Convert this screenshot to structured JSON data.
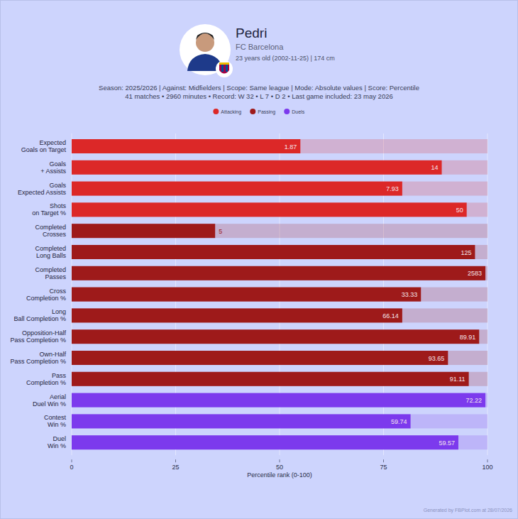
{
  "chart_data": {
    "type": "bar",
    "orientation": "horizontal",
    "title": "Pedri",
    "subtitle": "FC Barcelona",
    "player_info": "23 years old (2002-11-25)  |   174 cm",
    "annotations": [
      "Season: 2025/2026 | Against: Midfielders | Scope: Same league | Mode: Absolute values | Score: Percentile",
      "41 matches • 2960 minutes • Record: W 32 • L 7 • D 2 • Last game included: 23 may 2026"
    ],
    "footer": "Generated by FBPlot.com at 28/07/2026",
    "x_label": "Percentile rank (0-100)",
    "categories": [
      "Expected Goals on Target",
      "Goals + Assists",
      "Goals Expected Assists",
      "Shots on Target %",
      "Completed Crosses",
      "Completed Long Balls",
      "Completed Passes",
      "Cross Completion %",
      "Long Ball Completion %",
      "Opposition-Half Pass Completion %",
      "Own-Half Pass Completion %",
      "Pass Completion %",
      "Aerial Duel Win %",
      "Contest Win %",
      "Duel Win %"
    ],
    "series": [
      {
        "name": "Attacking",
        "color": "#dc2828",
        "values": [
          55,
          89,
          79.5,
          95,
          null,
          null,
          null,
          null,
          null,
          null,
          null,
          null,
          null,
          null,
          null
        ],
        "absolute_values": [
          1.87,
          14,
          7.93,
          50,
          null,
          null,
          null,
          null,
          null,
          null,
          null,
          null,
          null,
          null,
          null
        ]
      },
      {
        "name": "Passing",
        "color": "#9e1a1a",
        "values": [
          null,
          null,
          null,
          null,
          34.5,
          97,
          99.5,
          84,
          79.5,
          98,
          90.5,
          95.5,
          null,
          null,
          null
        ],
        "absolute_values": [
          null,
          null,
          null,
          null,
          5,
          125,
          2583,
          33.33,
          66.14,
          89.91,
          93.65,
          91.11,
          null,
          null,
          null
        ]
      },
      {
        "name": "Duels",
        "color": "#7c3aed",
        "values": [
          null,
          null,
          null,
          null,
          null,
          null,
          null,
          null,
          null,
          null,
          null,
          null,
          99.5,
          81.5,
          93
        ],
        "absolute_values": [
          null,
          null,
          null,
          null,
          null,
          null,
          null,
          null,
          null,
          null,
          null,
          null,
          72.22,
          59.74,
          59.57
        ]
      }
    ],
    "xlim": [
      0,
      100
    ],
    "xticks": [
      0,
      25,
      50,
      75,
      100
    ],
    "grid": true,
    "legend": "top"
  }
}
